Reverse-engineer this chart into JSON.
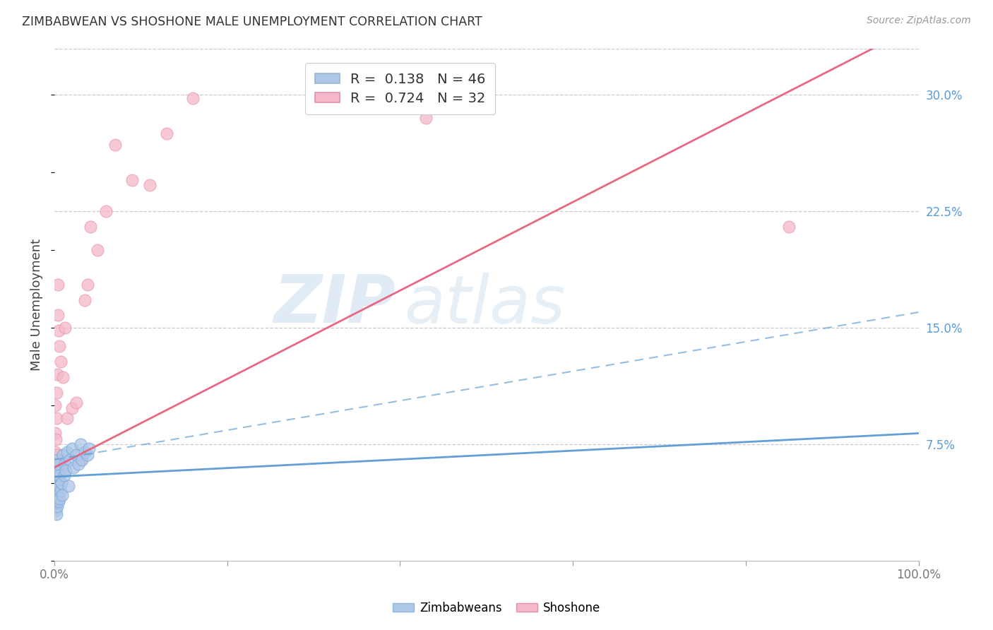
{
  "title": "ZIMBABWEAN VS SHOSHONE MALE UNEMPLOYMENT CORRELATION CHART",
  "source": "Source: ZipAtlas.com",
  "ylabel": "Male Unemployment",
  "right_yticks": [
    "30.0%",
    "22.5%",
    "15.0%",
    "7.5%"
  ],
  "right_ytick_vals": [
    0.3,
    0.225,
    0.15,
    0.075
  ],
  "legend_blue_r": "0.138",
  "legend_blue_n": "46",
  "legend_pink_r": "0.724",
  "legend_pink_n": "32",
  "legend_label_blue": "Zimbabweans",
  "legend_label_pink": "Shoshone",
  "blue_color": "#aec6e8",
  "pink_color": "#f5b8c8",
  "blue_line_color": "#5b9bd5",
  "pink_line_color": "#e8607a",
  "watermark_zip": "ZIP",
  "watermark_atlas": "atlas",
  "background_color": "#ffffff",
  "grid_color": "#cccccc",
  "xlim": [
    0.0,
    1.0
  ],
  "ylim": [
    0.0,
    0.33
  ],
  "blue_dots_x": [
    0.0005,
    0.0008,
    0.001,
    0.001,
    0.001,
    0.0012,
    0.0015,
    0.0015,
    0.002,
    0.002,
    0.002,
    0.002,
    0.002,
    0.0025,
    0.003,
    0.003,
    0.003,
    0.003,
    0.003,
    0.0035,
    0.004,
    0.004,
    0.005,
    0.005,
    0.005,
    0.006,
    0.006,
    0.007,
    0.008,
    0.009,
    0.01,
    0.011,
    0.012,
    0.013,
    0.015,
    0.016,
    0.018,
    0.02,
    0.022,
    0.025,
    0.028,
    0.03,
    0.032,
    0.035,
    0.038,
    0.04
  ],
  "blue_dots_y": [
    0.048,
    0.042,
    0.038,
    0.045,
    0.055,
    0.035,
    0.032,
    0.052,
    0.03,
    0.038,
    0.042,
    0.05,
    0.058,
    0.04,
    0.035,
    0.045,
    0.055,
    0.06,
    0.065,
    0.048,
    0.042,
    0.058,
    0.038,
    0.048,
    0.062,
    0.04,
    0.055,
    0.045,
    0.05,
    0.042,
    0.068,
    0.055,
    0.062,
    0.058,
    0.07,
    0.048,
    0.065,
    0.072,
    0.06,
    0.068,
    0.062,
    0.075,
    0.065,
    0.07,
    0.068,
    0.072
  ],
  "pink_dots_x": [
    0.0005,
    0.001,
    0.001,
    0.0015,
    0.002,
    0.002,
    0.003,
    0.003,
    0.004,
    0.004,
    0.005,
    0.006,
    0.007,
    0.008,
    0.01,
    0.012,
    0.015,
    0.02,
    0.025,
    0.03,
    0.035,
    0.038,
    0.042,
    0.05,
    0.06,
    0.07,
    0.09,
    0.11,
    0.13,
    0.16,
    0.43,
    0.85
  ],
  "pink_dots_y": [
    0.07,
    0.082,
    0.1,
    0.078,
    0.092,
    0.108,
    0.068,
    0.12,
    0.158,
    0.178,
    0.148,
    0.138,
    0.128,
    0.06,
    0.118,
    0.15,
    0.092,
    0.098,
    0.102,
    0.065,
    0.168,
    0.178,
    0.215,
    0.2,
    0.225,
    0.268,
    0.245,
    0.242,
    0.275,
    0.298,
    0.285,
    0.215
  ],
  "blue_line_intercept": 0.054,
  "blue_line_slope": 0.028,
  "blue_dash_intercept": 0.065,
  "blue_dash_slope": 0.095,
  "pink_line_intercept": 0.06,
  "pink_line_slope": 0.285
}
